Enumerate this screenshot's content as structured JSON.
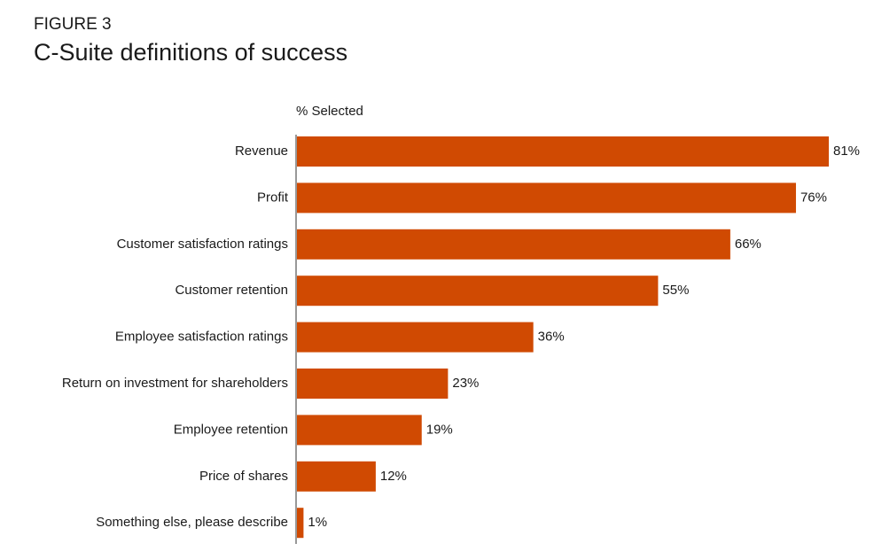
{
  "chart_data": {
    "type": "hbar",
    "figure_label": "FIGURE 3",
    "title": "C-Suite definitions of success",
    "axis_label": "% Selected",
    "categories": [
      "Revenue",
      "Profit",
      "Customer satisfaction ratings",
      "Customer retention",
      "Employee satisfaction ratings",
      "Return on investment for shareholders",
      "Employee retention",
      "Price of shares",
      "Something else, please describe"
    ],
    "values": [
      81,
      76,
      66,
      55,
      36,
      23,
      19,
      12,
      1
    ],
    "value_labels": [
      "81%",
      "76%",
      "66%",
      "55%",
      "36%",
      "23%",
      "19%",
      "12%",
      "1%"
    ],
    "color": "#d04a02"
  }
}
